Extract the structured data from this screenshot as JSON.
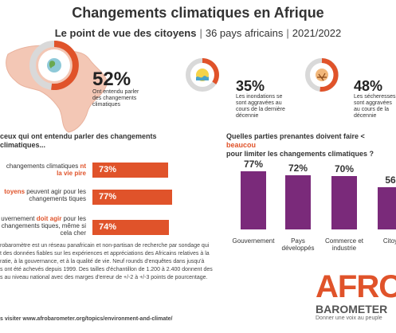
{
  "header": {
    "title": "Changements climatiques en Afrique",
    "subtitle_main": "Le point de vue des citoyens",
    "subtitle_countries": "36 pays africains",
    "subtitle_years": "2021/2022"
  },
  "stats": [
    {
      "value": "52%",
      "label": "Ont entendu parler des changements climatiques"
    },
    {
      "value": "35%",
      "label": "Les inondations se sont aggravées au cours de la dernière décennie"
    },
    {
      "value": "48%",
      "label": "Les sécheresses sont aggravées au cours de la décennie"
    }
  ],
  "left_section": {
    "heading": "ceux qui ont entendu parler des changements climatiques...",
    "bars": [
      {
        "label_pre": "changements climatiques",
        "label_hl": "nt la vie pire",
        "label_post": "",
        "display": "73%"
      },
      {
        "label_pre": "",
        "label_hl": "toyens",
        "label_post": " peuvent agir pour les changements tiques",
        "display": "77%"
      },
      {
        "label_pre": "uvernement ",
        "label_hl": "doit agir",
        "label_post": " pour les changements tiques, même si cela cher",
        "display": "74%"
      }
    ]
  },
  "right_section": {
    "heading_pre": "Quelles parties prenantes doivent faire < ",
    "heading_hl": "beaucou",
    "heading_post": "pour limiter les changements climatiques ?"
  },
  "chart_data": [
    {
      "type": "bar",
      "orientation": "horizontal",
      "categories": [
        "changements climatiques nt la vie pire",
        "toyens peuvent agir pour les changements tiques",
        "uvernement doit agir pour les changements tiques, même si cela cher"
      ],
      "values": [
        73,
        77,
        74
      ],
      "xlim": [
        0,
        100
      ],
      "color": "#e0532a"
    },
    {
      "type": "bar",
      "orientation": "vertical",
      "categories": [
        "Gouvernement",
        "Pays développés",
        "Commerce et industrie",
        "Citoy"
      ],
      "display": [
        "77%",
        "72%",
        "70%",
        "56"
      ],
      "values": [
        77,
        72,
        70,
        56
      ],
      "ylim": [
        0,
        100
      ],
      "color": "#7a2a7a"
    }
  ],
  "footer": {
    "lines": [
      "robaromètre est un réseau panafricain et non-partisan de recherche par sondage qui",
      "t des données fiables sur les expériences et appréciations des Africains relatives à la",
      "ratie, à la gouvernance, et à la qualité de vie. Neuf rounds d'enquêtes dans jusqu'à",
      "s ont été achevés depuis 1999. Des tailles d'échantillon de 1.200 à 2.400 donnent des",
      "s au niveau national avec des marges d'erreur de +/-2 à +/-3 points de pourcentage."
    ],
    "link": "s visiter www.afrobarometer.org/topics/environment-and-climate/"
  },
  "logo": {
    "big": "AFRO",
    "sub": "BAROMETER",
    "tagline": "Donner une voix au peuple"
  },
  "colors": {
    "accent": "#e0532a",
    "purple": "#7a2a7a",
    "map": "#f3c7b5"
  }
}
